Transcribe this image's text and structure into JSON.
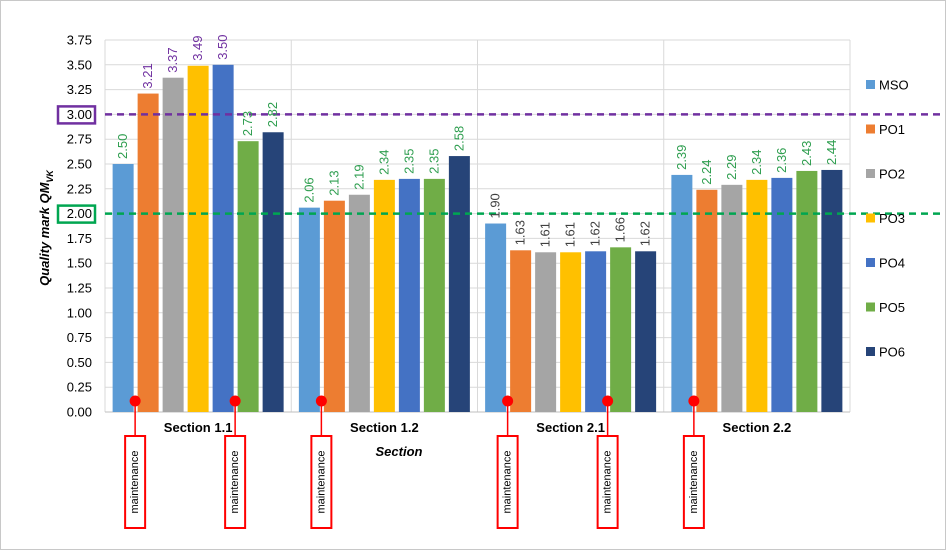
{
  "chart_data": {
    "type": "bar",
    "xlabel": "Section",
    "ylabel": "Quality mark QM",
    "ylabel_sub": "VK",
    "ylim": [
      0,
      3.75
    ],
    "yticks": [
      "0.00",
      "0.25",
      "0.50",
      "0.75",
      "1.00",
      "1.25",
      "1.50",
      "1.75",
      "2.00",
      "2.25",
      "2.50",
      "2.75",
      "3.00",
      "3.25",
      "3.50",
      "3.75"
    ],
    "grid": true,
    "legend_position": "right",
    "categories": [
      "Section 1.1",
      "Section 1.2",
      "Section 2.1",
      "Section 2.2"
    ],
    "series": [
      {
        "name": "MSO",
        "color": "#5b9bd5",
        "values": [
          2.5,
          2.06,
          1.9,
          2.39
        ],
        "labels": [
          "2.50",
          "2.06",
          "1.90",
          "2.39"
        ],
        "label_colors": [
          "#2e9e4f",
          "#2e9e4f",
          "#404040",
          "#2e9e4f"
        ]
      },
      {
        "name": "PO1",
        "color": "#ed7d31",
        "values": [
          3.21,
          2.13,
          1.63,
          2.24
        ],
        "labels": [
          "3.21",
          "2.13",
          "1.63",
          "2.24"
        ],
        "label_colors": [
          "#7030a0",
          "#2e9e4f",
          "#404040",
          "#2e9e4f"
        ]
      },
      {
        "name": "PO2",
        "color": "#a5a5a5",
        "values": [
          3.37,
          2.19,
          1.61,
          2.29
        ],
        "labels": [
          "3.37",
          "2.19",
          "1.61",
          "2.29"
        ],
        "label_colors": [
          "#7030a0",
          "#2e9e4f",
          "#404040",
          "#2e9e4f"
        ]
      },
      {
        "name": "PO3",
        "color": "#ffc000",
        "values": [
          3.49,
          2.34,
          1.61,
          2.34
        ],
        "labels": [
          "3.49",
          "2.34",
          "1.61",
          "2.34"
        ],
        "label_colors": [
          "#7030a0",
          "#2e9e4f",
          "#404040",
          "#2e9e4f"
        ]
      },
      {
        "name": "PO4",
        "color": "#4472c4",
        "values": [
          3.5,
          2.35,
          1.62,
          2.36
        ],
        "labels": [
          "3.50",
          "2.35",
          "1.62",
          "2.36"
        ],
        "label_colors": [
          "#7030a0",
          "#2e9e4f",
          "#404040",
          "#2e9e4f"
        ]
      },
      {
        "name": "PO5",
        "color": "#70ad47",
        "values": [
          2.73,
          2.35,
          1.66,
          2.43
        ],
        "labels": [
          "2.73",
          "2.35",
          "1.66",
          "2.43"
        ],
        "label_colors": [
          "#2e9e4f",
          "#2e9e4f",
          "#404040",
          "#2e9e4f"
        ]
      },
      {
        "name": "PO6",
        "color": "#264478",
        "values": [
          2.82,
          2.58,
          1.62,
          2.44
        ],
        "labels": [
          "2.82",
          "2.58",
          "1.62",
          "2.44"
        ],
        "label_colors": [
          "#2e9e4f",
          "#2e9e4f",
          "#404040",
          "#2e9e4f"
        ]
      }
    ],
    "reference_lines": [
      {
        "value": 3.0,
        "label": "3.00",
        "color": "#7030a0"
      },
      {
        "value": 2.0,
        "label": "2.00",
        "color": "#00a651"
      }
    ],
    "annotations": {
      "marker_color": "#ff0000",
      "text": "maintenance",
      "items": [
        {
          "category": 0,
          "series": 0
        },
        {
          "category": 0,
          "series": 4
        },
        {
          "category": 1,
          "series": 0
        },
        {
          "category": 2,
          "series": 0
        },
        {
          "category": 2,
          "series": 4
        },
        {
          "category": 3,
          "series": 0
        }
      ]
    }
  }
}
